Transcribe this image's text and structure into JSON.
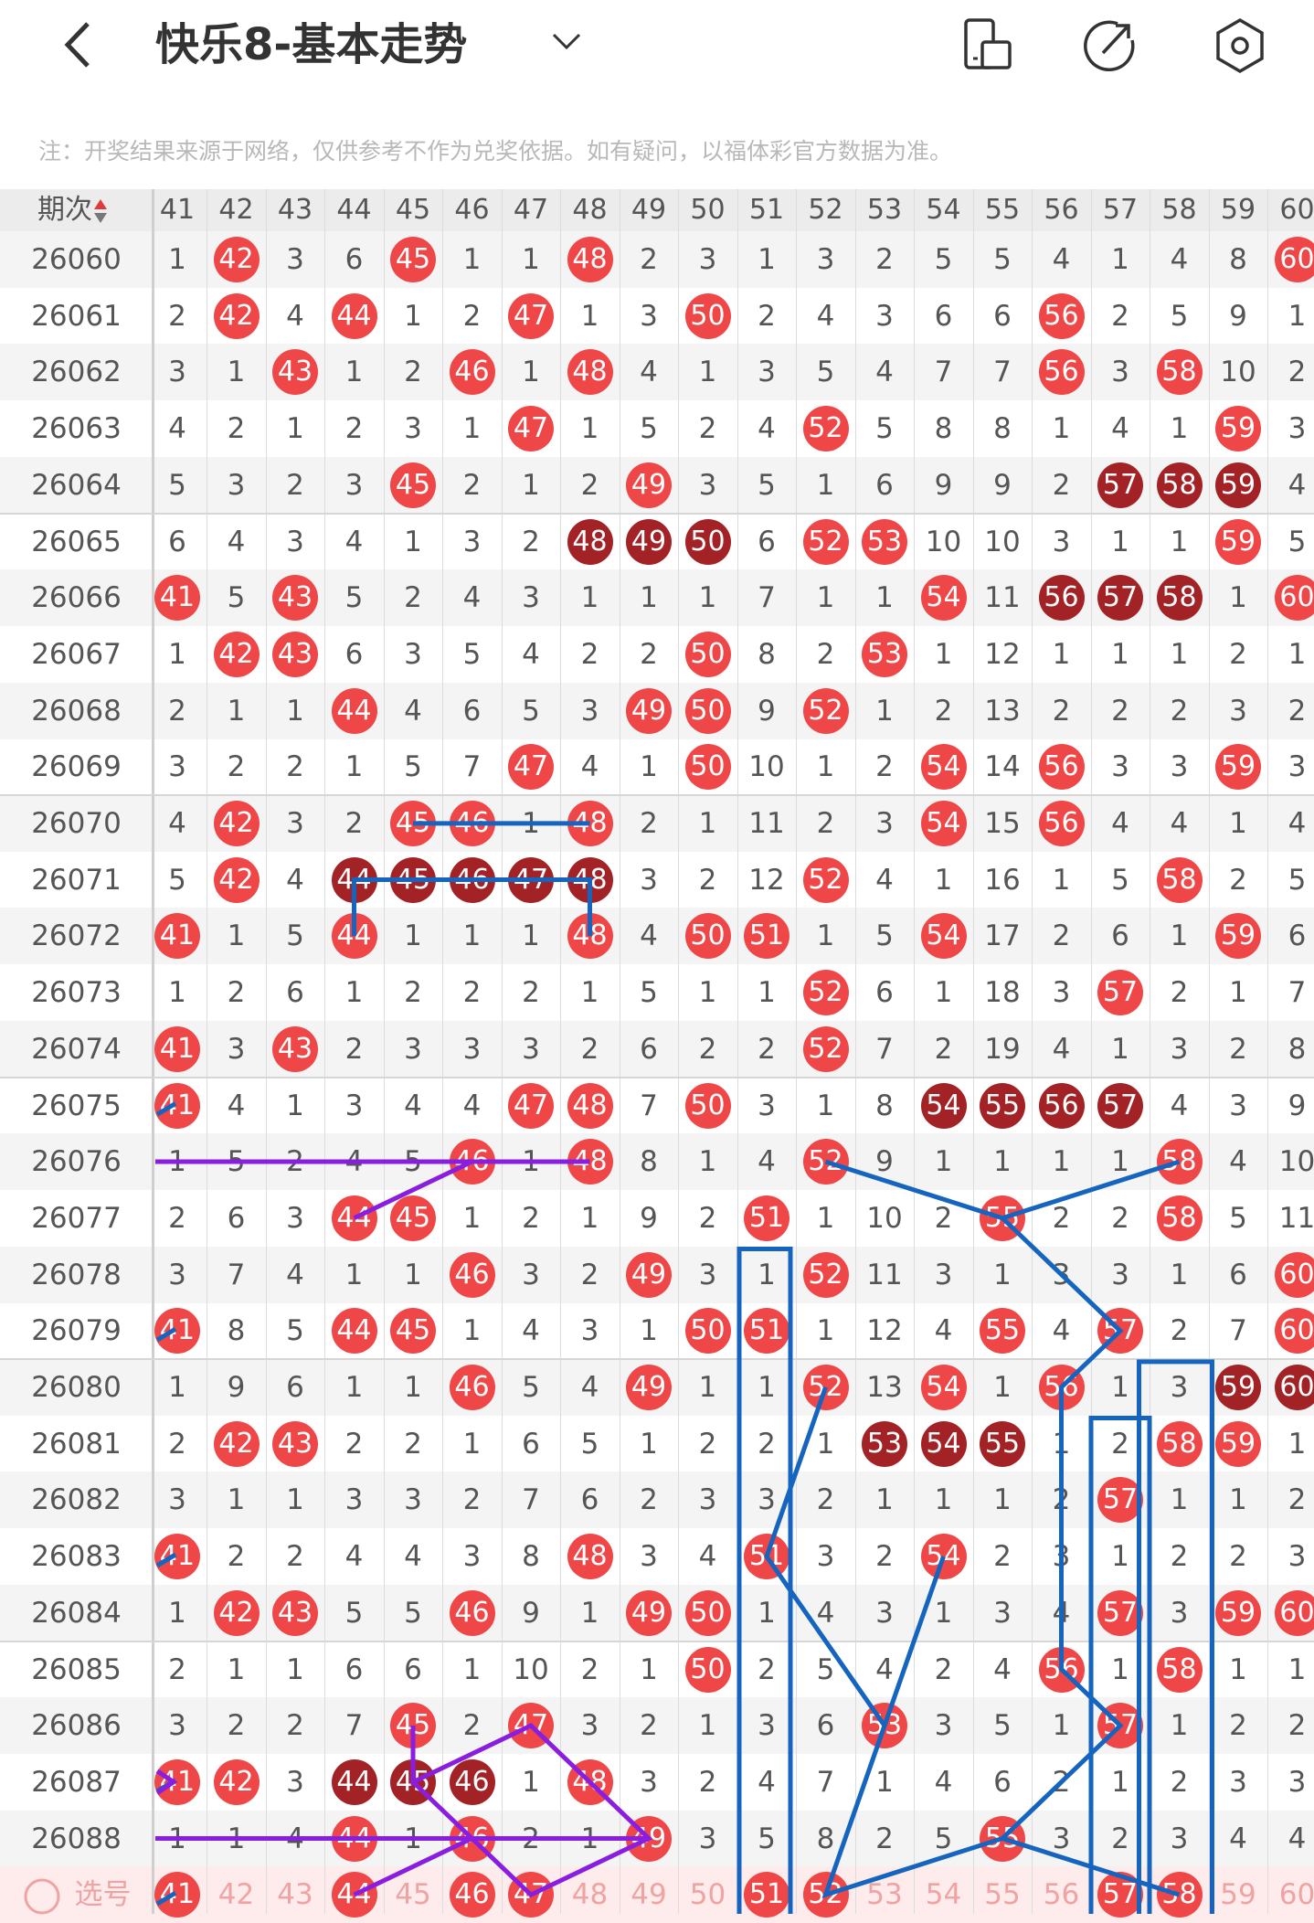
{
  "header": {
    "title": "快乐8-基本走势",
    "back_icon": "chevron-left-icon",
    "dropdown_icon": "chevron-down-icon",
    "icons": [
      "phone-rotate-icon",
      "share-icon",
      "settings-icon"
    ]
  },
  "note": "注：开奖结果来源于网络，仅供参考不作为兑奖依据。如有疑问，以福体彩官方数据为准。",
  "table": {
    "period_header": "期次",
    "columns": [
      "41",
      "42",
      "43",
      "44",
      "45",
      "46",
      "47",
      "48",
      "49",
      "50",
      "51",
      "52",
      "53",
      "54",
      "55",
      "56",
      "57",
      "58",
      "59",
      "60"
    ],
    "colors": {
      "hit": "#ef4747",
      "hit_consecutive": "#a32226",
      "text": "#555555"
    },
    "rows": [
      {
        "period": "26060",
        "values": [
          1,
          42,
          3,
          6,
          45,
          1,
          1,
          48,
          2,
          3,
          1,
          3,
          2,
          5,
          5,
          4,
          1,
          4,
          8,
          60
        ],
        "hits": [
          42,
          45,
          48,
          60
        ],
        "dark": []
      },
      {
        "period": "26061",
        "values": [
          2,
          42,
          4,
          44,
          1,
          2,
          47,
          1,
          3,
          50,
          2,
          4,
          3,
          6,
          6,
          56,
          2,
          5,
          9,
          1
        ],
        "hits": [
          42,
          44,
          47,
          50,
          56
        ],
        "dark": []
      },
      {
        "period": "26062",
        "values": [
          3,
          1,
          43,
          1,
          2,
          46,
          1,
          48,
          4,
          1,
          3,
          5,
          4,
          7,
          7,
          56,
          3,
          58,
          10,
          2
        ],
        "hits": [
          43,
          46,
          48,
          56,
          58
        ],
        "dark": []
      },
      {
        "period": "26063",
        "values": [
          4,
          2,
          1,
          2,
          3,
          1,
          47,
          1,
          5,
          2,
          4,
          52,
          5,
          8,
          8,
          1,
          4,
          1,
          59,
          3
        ],
        "hits": [
          47,
          52,
          59
        ],
        "dark": []
      },
      {
        "period": "26064",
        "values": [
          5,
          3,
          2,
          3,
          45,
          2,
          1,
          2,
          49,
          3,
          5,
          1,
          6,
          9,
          9,
          2,
          57,
          58,
          59,
          4
        ],
        "hits": [
          45,
          49
        ],
        "dark": [
          57,
          58,
          59
        ]
      },
      {
        "period": "26065",
        "values": [
          6,
          4,
          3,
          4,
          1,
          3,
          2,
          48,
          49,
          50,
          6,
          52,
          53,
          10,
          10,
          3,
          1,
          1,
          59,
          5
        ],
        "hits": [
          52,
          53,
          59
        ],
        "dark": [
          48,
          49,
          50
        ]
      },
      {
        "period": "26066",
        "values": [
          41,
          5,
          43,
          5,
          2,
          4,
          3,
          1,
          1,
          1,
          7,
          1,
          1,
          54,
          11,
          56,
          57,
          58,
          1,
          60
        ],
        "hits": [
          41,
          43,
          54,
          60
        ],
        "dark": [
          56,
          57,
          58
        ]
      },
      {
        "period": "26067",
        "values": [
          1,
          42,
          43,
          6,
          3,
          5,
          4,
          2,
          2,
          50,
          8,
          2,
          53,
          1,
          12,
          1,
          1,
          1,
          2,
          1
        ],
        "hits": [
          42,
          43,
          50,
          53
        ],
        "dark": []
      },
      {
        "period": "26068",
        "values": [
          2,
          1,
          1,
          44,
          4,
          6,
          5,
          3,
          49,
          50,
          9,
          52,
          1,
          2,
          13,
          2,
          2,
          2,
          3,
          2
        ],
        "hits": [
          44,
          49,
          50,
          52
        ],
        "dark": []
      },
      {
        "period": "26069",
        "values": [
          3,
          2,
          2,
          1,
          5,
          7,
          47,
          4,
          1,
          50,
          10,
          1,
          2,
          54,
          14,
          56,
          3,
          3,
          59,
          3
        ],
        "hits": [
          47,
          50,
          54,
          56,
          59
        ],
        "dark": []
      },
      {
        "period": "26070",
        "values": [
          4,
          42,
          3,
          2,
          45,
          46,
          1,
          48,
          2,
          1,
          11,
          2,
          3,
          54,
          15,
          56,
          4,
          4,
          1,
          4
        ],
        "hits": [
          42,
          45,
          46,
          48,
          54,
          56
        ],
        "dark": []
      },
      {
        "period": "26071",
        "values": [
          5,
          42,
          4,
          44,
          45,
          46,
          47,
          48,
          3,
          2,
          12,
          52,
          4,
          1,
          16,
          1,
          5,
          58,
          2,
          5
        ],
        "hits": [
          42,
          52,
          58
        ],
        "dark": [
          44,
          45,
          46,
          47,
          48
        ]
      },
      {
        "period": "26072",
        "values": [
          41,
          1,
          5,
          44,
          1,
          1,
          1,
          48,
          4,
          50,
          51,
          1,
          5,
          54,
          17,
          2,
          6,
          1,
          59,
          6
        ],
        "hits": [
          41,
          44,
          48,
          50,
          51,
          54,
          59
        ],
        "dark": []
      },
      {
        "period": "26073",
        "values": [
          1,
          2,
          6,
          1,
          2,
          2,
          2,
          1,
          5,
          1,
          1,
          52,
          6,
          1,
          18,
          3,
          57,
          2,
          1,
          7
        ],
        "hits": [
          52,
          57
        ],
        "dark": []
      },
      {
        "period": "26074",
        "values": [
          41,
          3,
          43,
          2,
          3,
          3,
          3,
          2,
          6,
          2,
          2,
          52,
          7,
          2,
          19,
          4,
          1,
          3,
          2,
          8
        ],
        "hits": [
          41,
          43,
          52
        ],
        "dark": []
      },
      {
        "period": "26075",
        "values": [
          41,
          4,
          1,
          3,
          4,
          4,
          47,
          48,
          7,
          50,
          3,
          1,
          8,
          54,
          55,
          56,
          57,
          4,
          3,
          9
        ],
        "hits": [
          41,
          47,
          48,
          50
        ],
        "dark": [
          54,
          55,
          56,
          57
        ]
      },
      {
        "period": "26076",
        "values": [
          1,
          5,
          2,
          4,
          5,
          46,
          1,
          48,
          8,
          1,
          4,
          52,
          9,
          1,
          1,
          1,
          1,
          58,
          4,
          10
        ],
        "hits": [
          46,
          48,
          52,
          58
        ],
        "dark": []
      },
      {
        "period": "26077",
        "values": [
          2,
          6,
          3,
          44,
          45,
          1,
          2,
          1,
          9,
          2,
          51,
          1,
          10,
          2,
          55,
          2,
          2,
          58,
          5,
          11
        ],
        "hits": [
          44,
          45,
          51,
          55,
          58
        ],
        "dark": []
      },
      {
        "period": "26078",
        "values": [
          3,
          7,
          4,
          1,
          1,
          46,
          3,
          2,
          49,
          3,
          1,
          52,
          11,
          3,
          1,
          3,
          3,
          1,
          6,
          60
        ],
        "hits": [
          46,
          49,
          52,
          60
        ],
        "dark": []
      },
      {
        "period": "26079",
        "values": [
          41,
          8,
          5,
          44,
          45,
          1,
          4,
          3,
          1,
          50,
          51,
          1,
          12,
          4,
          55,
          4,
          57,
          2,
          7,
          60
        ],
        "hits": [
          41,
          44,
          45,
          50,
          51,
          55,
          57,
          60
        ],
        "dark": []
      },
      {
        "period": "26080",
        "values": [
          1,
          9,
          6,
          1,
          1,
          46,
          5,
          4,
          49,
          1,
          1,
          52,
          13,
          54,
          1,
          56,
          1,
          3,
          59,
          60
        ],
        "hits": [
          46,
          49,
          52,
          54,
          56
        ],
        "dark": [
          59,
          60
        ]
      },
      {
        "period": "26081",
        "values": [
          2,
          42,
          43,
          2,
          2,
          1,
          6,
          5,
          1,
          2,
          2,
          1,
          53,
          54,
          55,
          1,
          2,
          58,
          59,
          1
        ],
        "hits": [
          42,
          43,
          58,
          59
        ],
        "dark": [
          53,
          54,
          55
        ]
      },
      {
        "period": "26082",
        "values": [
          3,
          1,
          1,
          3,
          3,
          2,
          7,
          6,
          2,
          3,
          3,
          2,
          1,
          1,
          1,
          2,
          57,
          1,
          1,
          2
        ],
        "hits": [
          57
        ],
        "dark": []
      },
      {
        "period": "26083",
        "values": [
          41,
          2,
          2,
          4,
          4,
          3,
          8,
          48,
          3,
          4,
          51,
          3,
          2,
          54,
          2,
          3,
          1,
          2,
          2,
          3
        ],
        "hits": [
          41,
          48,
          51,
          54
        ],
        "dark": []
      },
      {
        "period": "26084",
        "values": [
          1,
          42,
          43,
          5,
          5,
          46,
          9,
          1,
          49,
          50,
          1,
          4,
          3,
          1,
          3,
          4,
          57,
          3,
          59,
          60
        ],
        "hits": [
          42,
          43,
          46,
          49,
          50,
          57,
          59,
          60
        ],
        "dark": []
      },
      {
        "period": "26085",
        "values": [
          2,
          1,
          1,
          6,
          6,
          1,
          10,
          2,
          1,
          50,
          2,
          5,
          4,
          2,
          4,
          56,
          1,
          58,
          1,
          1
        ],
        "hits": [
          50,
          56,
          58
        ],
        "dark": []
      },
      {
        "period": "26086",
        "values": [
          3,
          2,
          2,
          7,
          45,
          2,
          47,
          3,
          2,
          1,
          3,
          6,
          53,
          3,
          5,
          1,
          57,
          1,
          2,
          2
        ],
        "hits": [
          45,
          47,
          53,
          57
        ],
        "dark": []
      },
      {
        "period": "26087",
        "values": [
          41,
          42,
          3,
          44,
          45,
          46,
          1,
          48,
          3,
          2,
          4,
          7,
          1,
          4,
          6,
          2,
          1,
          2,
          3,
          3
        ],
        "hits": [
          41,
          42,
          48
        ],
        "dark": [
          44,
          45,
          46
        ]
      },
      {
        "period": "26088",
        "values": [
          1,
          1,
          4,
          44,
          1,
          46,
          2,
          1,
          49,
          3,
          5,
          8,
          2,
          5,
          55,
          3,
          2,
          3,
          4,
          4
        ],
        "hits": [
          44,
          46,
          49,
          55
        ],
        "dark": []
      }
    ],
    "select_row": {
      "label": "选号",
      "selected": [
        41,
        44,
        46,
        47,
        51,
        52,
        57,
        58
      ]
    }
  }
}
